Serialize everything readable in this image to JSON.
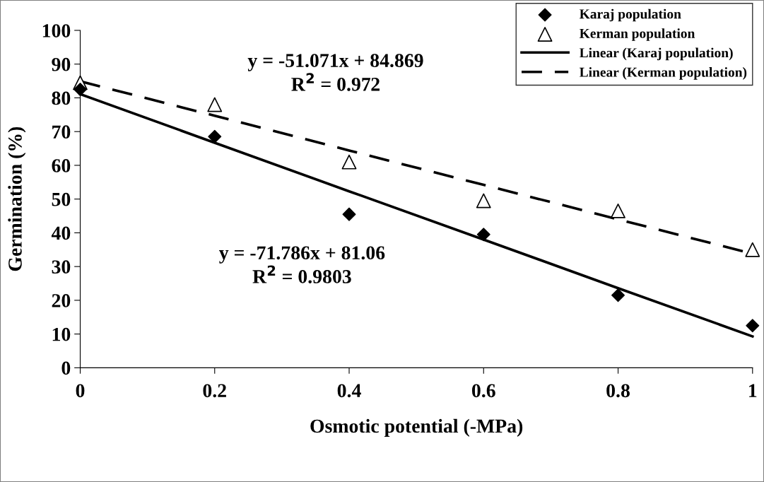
{
  "chart_data": {
    "type": "scatter",
    "xlabel": "Osmotic potential (-MPa)",
    "ylabel": "Germination (%)",
    "x": [
      0,
      0.2,
      0.4,
      0.6,
      0.8,
      1
    ],
    "series": [
      {
        "name": "Karaj population",
        "marker": "diamond",
        "color": "#000000",
        "values": [
          82.5,
          68.5,
          45.5,
          39.5,
          21.5,
          12.5
        ]
      },
      {
        "name": "Kerman population",
        "marker": "triangle",
        "color": "#000000",
        "values": [
          84.5,
          78,
          61,
          49.5,
          46.5,
          35
        ]
      },
      {
        "name": "Linear (Karaj population)",
        "type": "line",
        "line_style": "solid",
        "color": "#000000",
        "values": [
          81.1,
          66.7,
          52.3,
          38,
          23.6,
          9.3
        ]
      },
      {
        "name": "Linear (Kerman population)",
        "type": "line",
        "line_style": "dashed",
        "color": "#000000",
        "values": [
          84.9,
          74.7,
          64.4,
          54.2,
          44,
          33.8
        ]
      }
    ],
    "annotations": [
      "y = -51.071x + 84.869\nR$^{2}$ = 0.972",
      "y = -71.786x + 81.06\nR$^{2}$ = 0.9803"
    ],
    "xlim": [
      0,
      1
    ],
    "xticks": [
      0,
      {
        "value": 0.2,
        "label": "0.2"
      },
      {
        "value": 0.4,
        "label": "0.4"
      },
      {
        "value": 0.6,
        "label": "0.6"
      },
      {
        "value": 0.8,
        "label": "0.8"
      },
      1
    ],
    "ylim": [
      0,
      100
    ],
    "yticks": [
      0,
      10,
      20,
      30,
      40,
      50,
      60,
      70,
      80,
      90,
      100
    ],
    "grid": false,
    "legend": "top right"
  }
}
